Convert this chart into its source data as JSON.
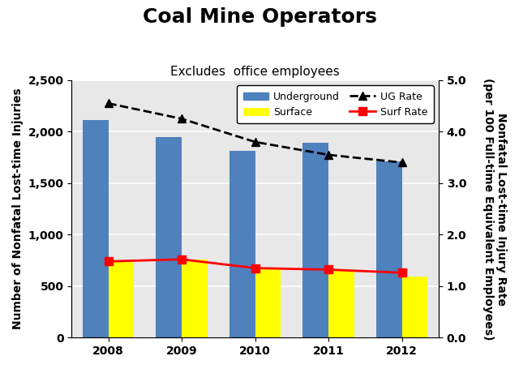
{
  "title": "Coal Mine Operators",
  "subtitle": "Excludes  office employees",
  "years": [
    2008,
    2009,
    2010,
    2011,
    2012
  ],
  "underground_bars": [
    2110,
    1950,
    1810,
    1890,
    1710
  ],
  "surface_bars": [
    750,
    755,
    670,
    665,
    590
  ],
  "ug_rate": [
    4.55,
    4.25,
    3.8,
    3.55,
    3.4
  ],
  "surf_rate": [
    1.48,
    1.52,
    1.35,
    1.32,
    1.26
  ],
  "bar_width": 0.35,
  "underground_color": "#4f81bd",
  "surface_color": "#ffff00",
  "ug_rate_color": "#000000",
  "surf_rate_color": "#ff0000",
  "ylim_left": [
    0,
    2500
  ],
  "ylim_right": [
    0,
    5.0
  ],
  "yticks_left": [
    0,
    500,
    1000,
    1500,
    2000,
    2500
  ],
  "yticks_right": [
    0.0,
    1.0,
    2.0,
    3.0,
    4.0,
    5.0
  ],
  "ylabel_left": "Number of Nonfatal Lost-time Injuries",
  "ylabel_right": "Nonfatal Lost-time Injury Rate\n(per 100 Full-time Equivalent Employees)",
  "plot_bg_color": "#e8e8e8",
  "fig_bg_color": "#ffffff",
  "title_fontsize": 18,
  "subtitle_fontsize": 11,
  "label_fontsize": 10,
  "tick_fontsize": 10
}
